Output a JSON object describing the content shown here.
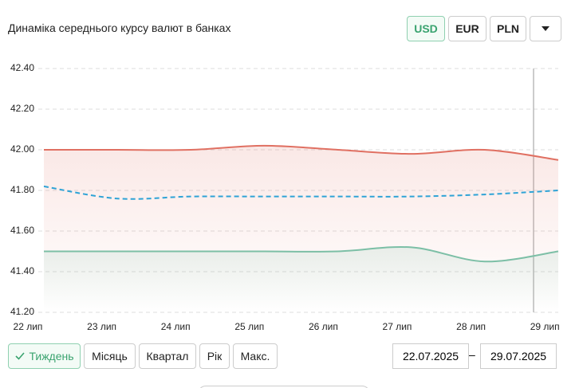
{
  "chart_data": {
    "type": "line",
    "title": "Динаміка середнього курсу валют в банках",
    "categories": [
      "22 лип",
      "23 лип",
      "24 лип",
      "25 лип",
      "26 лип",
      "27 лип",
      "28 лип",
      "29 лип"
    ],
    "series": [
      {
        "color": "#e07062",
        "dash": false,
        "fill": true,
        "values": [
          42.0,
          42.0,
          42.0,
          42.02,
          42.0,
          41.98,
          42.0,
          41.95
        ]
      },
      {
        "color": "#2ea3d6",
        "dash": true,
        "fill": false,
        "values": [
          41.82,
          41.76,
          41.77,
          41.77,
          41.77,
          41.77,
          41.78,
          41.8
        ]
      },
      {
        "color": "#7cbfa6",
        "dash": false,
        "fill": true,
        "values": [
          41.5,
          41.5,
          41.5,
          41.5,
          41.5,
          41.52,
          41.45,
          41.5
        ]
      }
    ],
    "ylim": [
      41.2,
      42.4
    ],
    "yticks": [
      {
        "value": 41.2,
        "label": "41.20"
      },
      {
        "value": 41.4,
        "label": "41.40"
      },
      {
        "value": 41.6,
        "label": "41.60"
      },
      {
        "value": 41.8,
        "label": "41.80"
      },
      {
        "value": 42.0,
        "label": "42.00"
      },
      {
        "value": 42.2,
        "label": "42.20"
      },
      {
        "value": 42.4,
        "label": "42.40"
      }
    ],
    "grid": true
  },
  "currency_buttons": [
    "USD",
    "EUR",
    "PLN"
  ],
  "period_buttons": [
    "Тиждень",
    "Місяць",
    "Квартал",
    "Рік",
    "Макс."
  ],
  "date_from": "22.07.2025",
  "date_separator": "–",
  "date_to": "29.07.2025"
}
